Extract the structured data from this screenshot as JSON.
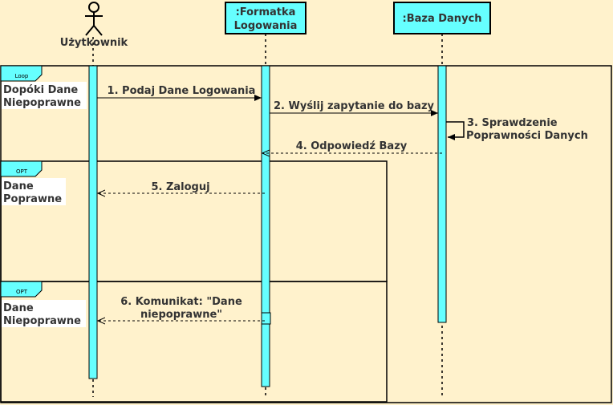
{
  "actors": {
    "user": {
      "label": "Użytkownik"
    },
    "form": {
      "label_line1": ":Formatka",
      "label_line2": "Logowania"
    },
    "db": {
      "label": ":Baza Danych"
    }
  },
  "fragments": {
    "loop": {
      "tag": "Loop",
      "guard_line1": "Dopóki Dane",
      "guard_line2": "Niepoprawne"
    },
    "opt1": {
      "tag": "OPT",
      "guard_line1": "Dane",
      "guard_line2": "Poprawne"
    },
    "opt2": {
      "tag": "OPT",
      "guard_line1": "Dane",
      "guard_line2": "Niepoprawne"
    }
  },
  "messages": {
    "m1": "1. Podaj Dane Logowania",
    "m2": "2. Wyślij zapytanie do bazy",
    "m3_line1": "3. Sprawdzenie",
    "m3_line2": "Poprawności Danych",
    "m4": "4. Odpowiedź Bazy",
    "m5": "5. Zaloguj",
    "m6_line1": "6. Komunikat: \"Dane",
    "m6_line2": "niepoprawne\""
  },
  "colors": {
    "background": "#fff2cc",
    "activation": "#66ffff",
    "lifeline_header": "#66ffff",
    "line": "#000000"
  }
}
